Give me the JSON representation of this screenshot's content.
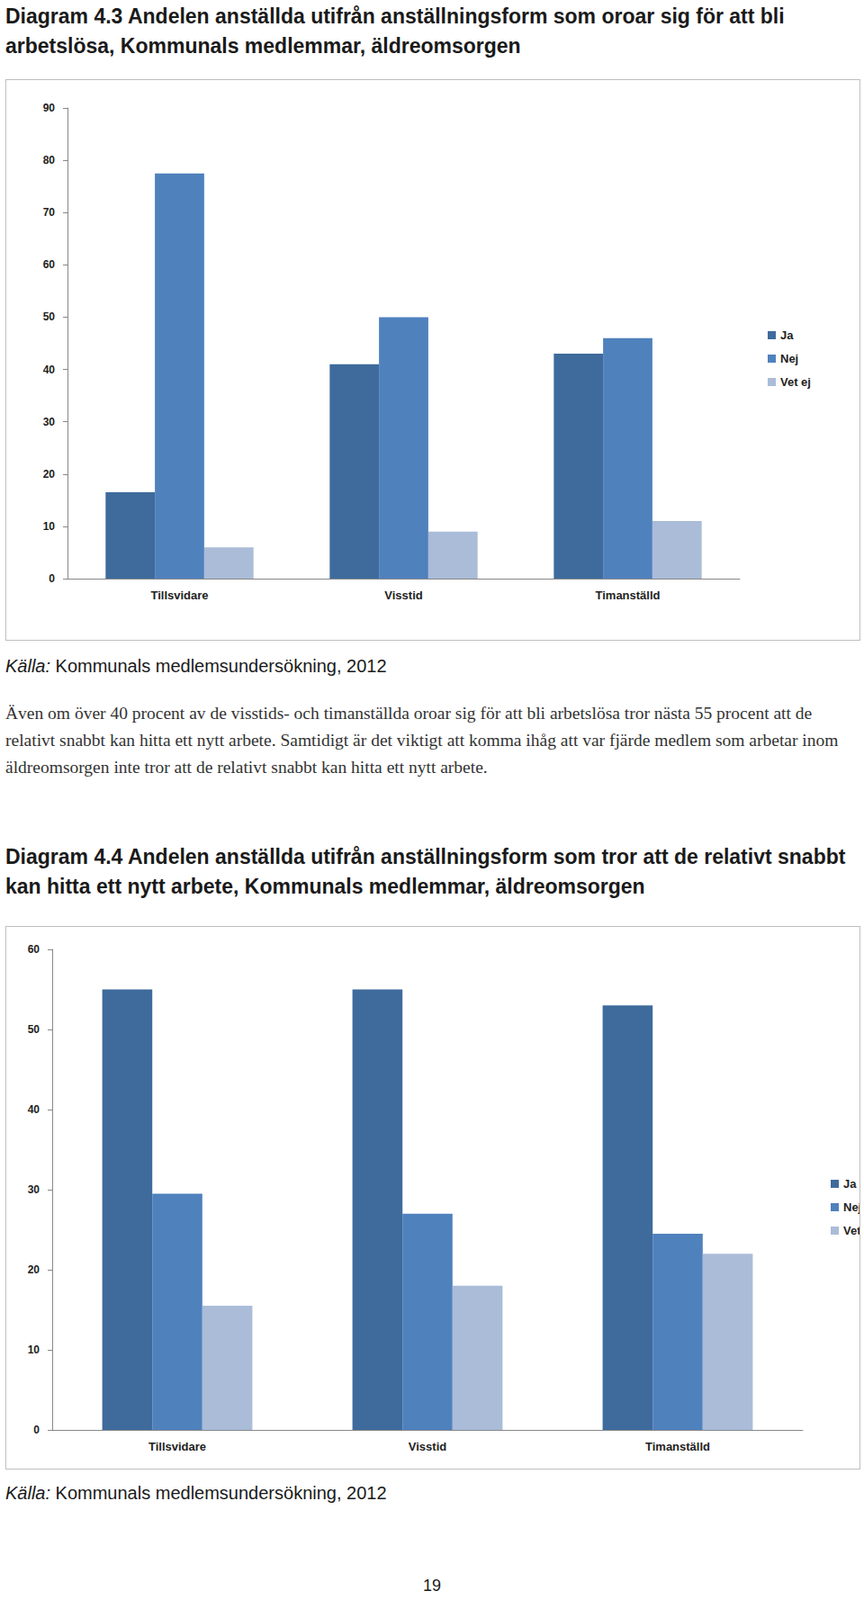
{
  "chart_data": [
    {
      "type": "bar",
      "title": "Diagram 4.3 Andelen anställda utifrån anställningsform som oroar sig för att bli arbetslösa, Kommunals medlemmar, äldreomsorgen",
      "categories": [
        "Tillsvidare",
        "Visstid",
        "Timanställd"
      ],
      "series": [
        {
          "name": "Ja",
          "color": "#3e6b9c",
          "values": [
            16.5,
            41,
            43
          ]
        },
        {
          "name": "Nej",
          "color": "#4f81bd",
          "values": [
            77.5,
            50,
            46
          ]
        },
        {
          "name": "Vet ej",
          "color": "#aabcd8",
          "values": [
            6,
            9,
            11
          ]
        }
      ],
      "ylim": [
        0,
        90
      ],
      "yticks": [
        0,
        10,
        20,
        30,
        40,
        50,
        60,
        70,
        80,
        90
      ],
      "grid": false,
      "legend": "right",
      "data_labels": false
    },
    {
      "type": "bar",
      "title": "Diagram 4.4 Andelen anställda utifrån anställningsform som tror att de relativt snabbt kan hitta ett nytt arbete, Kommunals medlemmar, äldreomsorgen",
      "categories": [
        "Tillsvidare",
        "Visstid",
        "Timanställd"
      ],
      "series": [
        {
          "name": "Ja",
          "color": "#3e6b9c",
          "values": [
            55,
            55,
            53
          ]
        },
        {
          "name": "Nej",
          "color": "#4f81bd",
          "values": [
            29.5,
            27,
            24.5
          ]
        },
        {
          "name": "Vet ej",
          "color": "#aabcd8",
          "values": [
            15.5,
            18,
            22
          ]
        }
      ],
      "ylim": [
        0,
        60
      ],
      "yticks": [
        0,
        10,
        20,
        30,
        40,
        50,
        60
      ],
      "grid": false,
      "legend": "right",
      "data_labels": false
    }
  ],
  "document": {
    "sources": [
      {
        "label": "Källa:",
        "text": "Kommunals medlemsundersökning, 2012"
      },
      {
        "label": "Källa:",
        "text": "Kommunals medlemsundersökning, 2012"
      }
    ],
    "paragraph": "Även om över 40 procent av de visstids- och timanställda oroar sig för att bli arbetslösa tror nästa 55 procent att de relativt snabbt kan hitta ett nytt arbete. Samtidigt är det viktigt att komma ihåg att var fjärde medlem som arbetar inom äldreomsorgen inte tror att de relativt snabbt kan hitta ett nytt arbete.",
    "page_number": "19"
  }
}
